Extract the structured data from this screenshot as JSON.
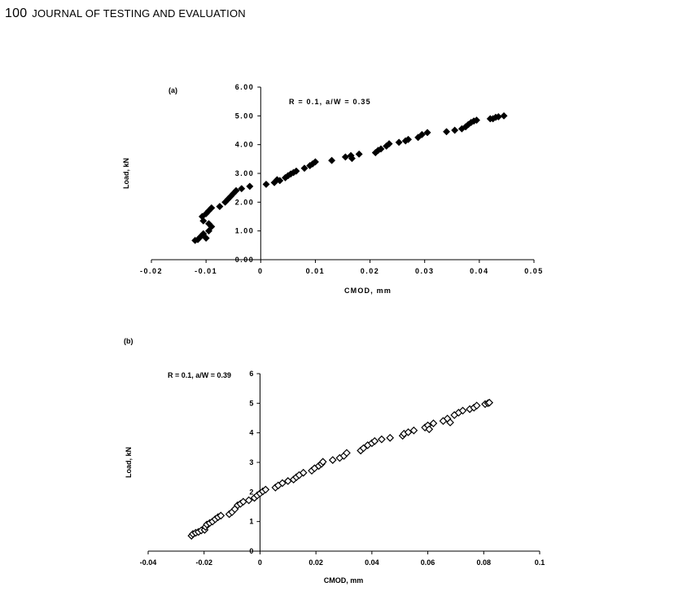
{
  "header": {
    "page_number": "100",
    "journal": "JOURNAL OF TESTING AND EVALUATION"
  },
  "chart_data": [
    {
      "type": "scatter",
      "panel_label": "(a)",
      "annotation": "R = 0.1, a/W = 0.35",
      "xlabel": "CMOD, mm",
      "ylabel": "Load, kN",
      "xlim": [
        -0.02,
        0.05
      ],
      "ylim": [
        0,
        6
      ],
      "xticks": [
        "-0.02",
        "-0.01",
        "0",
        "0.01",
        "0.02",
        "0.03",
        "0.04",
        "0.05"
      ],
      "yticks": [
        "0.00",
        "1.00",
        "2.00",
        "3.00",
        "4.00",
        "5.00",
        "6.00"
      ],
      "marker": "filled-diamond",
      "grid": false,
      "points": [
        [
          -0.012,
          0.67
        ],
        [
          -0.0115,
          0.7
        ],
        [
          -0.011,
          0.8
        ],
        [
          -0.0105,
          0.9
        ],
        [
          -0.01,
          0.75
        ],
        [
          -0.0095,
          1.0
        ],
        [
          -0.009,
          1.15
        ],
        [
          -0.0095,
          1.25
        ],
        [
          -0.0105,
          1.35
        ],
        [
          -0.0107,
          1.5
        ],
        [
          -0.01,
          1.6
        ],
        [
          -0.0095,
          1.7
        ],
        [
          -0.009,
          1.8
        ],
        [
          -0.0075,
          1.85
        ],
        [
          -0.0065,
          2.0
        ],
        [
          -0.006,
          2.1
        ],
        [
          -0.0055,
          2.2
        ],
        [
          -0.005,
          2.3
        ],
        [
          -0.0045,
          2.4
        ],
        [
          -0.0035,
          2.47
        ],
        [
          -0.002,
          2.55
        ],
        [
          0.001,
          2.62
        ],
        [
          0.0025,
          2.68
        ],
        [
          0.003,
          2.78
        ],
        [
          0.0035,
          2.75
        ],
        [
          0.0045,
          2.85
        ],
        [
          0.005,
          2.92
        ],
        [
          0.0055,
          2.98
        ],
        [
          0.006,
          3.03
        ],
        [
          0.0065,
          3.08
        ],
        [
          0.008,
          3.18
        ],
        [
          0.009,
          3.27
        ],
        [
          0.0095,
          3.33
        ],
        [
          0.01,
          3.4
        ],
        [
          0.013,
          3.45
        ],
        [
          0.0155,
          3.57
        ],
        [
          0.0165,
          3.62
        ],
        [
          0.0167,
          3.52
        ],
        [
          0.018,
          3.67
        ],
        [
          0.021,
          3.72
        ],
        [
          0.0215,
          3.8
        ],
        [
          0.022,
          3.85
        ],
        [
          0.023,
          3.95
        ],
        [
          0.0235,
          4.03
        ],
        [
          0.0253,
          4.08
        ],
        [
          0.0265,
          4.13
        ],
        [
          0.027,
          4.18
        ],
        [
          0.0288,
          4.25
        ],
        [
          0.0295,
          4.35
        ],
        [
          0.0305,
          4.42
        ],
        [
          0.034,
          4.45
        ],
        [
          0.0355,
          4.5
        ],
        [
          0.0368,
          4.55
        ],
        [
          0.0375,
          4.62
        ],
        [
          0.038,
          4.7
        ],
        [
          0.0385,
          4.77
        ],
        [
          0.039,
          4.82
        ],
        [
          0.0395,
          4.85
        ],
        [
          0.042,
          4.9
        ],
        [
          0.0425,
          4.9
        ],
        [
          0.043,
          4.95
        ],
        [
          0.0435,
          4.97
        ],
        [
          0.0445,
          5.0
        ]
      ]
    },
    {
      "type": "scatter",
      "panel_label": "(b)",
      "annotation": "R = 0.1, a/W = 0.39",
      "xlabel": "CMOD, mm",
      "ylabel": "Load, kN",
      "xlim": [
        -0.04,
        0.1
      ],
      "ylim": [
        0,
        6
      ],
      "xticks": [
        "-0.04",
        "-0.02",
        "0",
        "0.02",
        "0.04",
        "0.06",
        "0.08",
        "0.1"
      ],
      "yticks": [
        "0",
        "1",
        "2",
        "3",
        "4",
        "5",
        "6"
      ],
      "marker": "open-diamond",
      "grid": false,
      "points": [
        [
          -0.0245,
          0.52
        ],
        [
          -0.024,
          0.58
        ],
        [
          -0.023,
          0.62
        ],
        [
          -0.022,
          0.65
        ],
        [
          -0.021,
          0.7
        ],
        [
          -0.0198,
          0.72
        ],
        [
          -0.0195,
          0.82
        ],
        [
          -0.019,
          0.9
        ],
        [
          -0.018,
          0.95
        ],
        [
          -0.017,
          1.0
        ],
        [
          -0.016,
          1.08
        ],
        [
          -0.015,
          1.15
        ],
        [
          -0.014,
          1.2
        ],
        [
          -0.011,
          1.25
        ],
        [
          -0.01,
          1.32
        ],
        [
          -0.009,
          1.42
        ],
        [
          -0.008,
          1.55
        ],
        [
          -0.007,
          1.6
        ],
        [
          -0.006,
          1.67
        ],
        [
          -0.004,
          1.72
        ],
        [
          -0.002,
          1.8
        ],
        [
          -0.001,
          1.88
        ],
        [
          0,
          1.95
        ],
        [
          0.001,
          2.02
        ],
        [
          0.002,
          2.08
        ],
        [
          0.0055,
          2.15
        ],
        [
          0.0065,
          2.22
        ],
        [
          0.008,
          2.3
        ],
        [
          0.01,
          2.37
        ],
        [
          0.012,
          2.42
        ],
        [
          0.013,
          2.5
        ],
        [
          0.014,
          2.57
        ],
        [
          0.0155,
          2.65
        ],
        [
          0.0185,
          2.72
        ],
        [
          0.0195,
          2.8
        ],
        [
          0.021,
          2.88
        ],
        [
          0.022,
          2.95
        ],
        [
          0.0225,
          3.02
        ],
        [
          0.026,
          3.08
        ],
        [
          0.0285,
          3.15
        ],
        [
          0.03,
          3.22
        ],
        [
          0.031,
          3.32
        ],
        [
          0.036,
          3.4
        ],
        [
          0.037,
          3.48
        ],
        [
          0.0385,
          3.58
        ],
        [
          0.04,
          3.65
        ],
        [
          0.041,
          3.72
        ],
        [
          0.0435,
          3.78
        ],
        [
          0.0465,
          3.83
        ],
        [
          0.051,
          3.9
        ],
        [
          0.0515,
          3.97
        ],
        [
          0.053,
          4.02
        ],
        [
          0.055,
          4.08
        ],
        [
          0.059,
          4.18
        ],
        [
          0.06,
          4.25
        ],
        [
          0.0605,
          4.12
        ],
        [
          0.062,
          4.32
        ],
        [
          0.0655,
          4.4
        ],
        [
          0.067,
          4.48
        ],
        [
          0.068,
          4.35
        ],
        [
          0.0695,
          4.6
        ],
        [
          0.071,
          4.68
        ],
        [
          0.0725,
          4.75
        ],
        [
          0.075,
          4.8
        ],
        [
          0.0765,
          4.85
        ],
        [
          0.0775,
          4.92
        ],
        [
          0.0805,
          4.97
        ],
        [
          0.0815,
          5.0
        ],
        [
          0.082,
          5.02
        ]
      ]
    }
  ]
}
